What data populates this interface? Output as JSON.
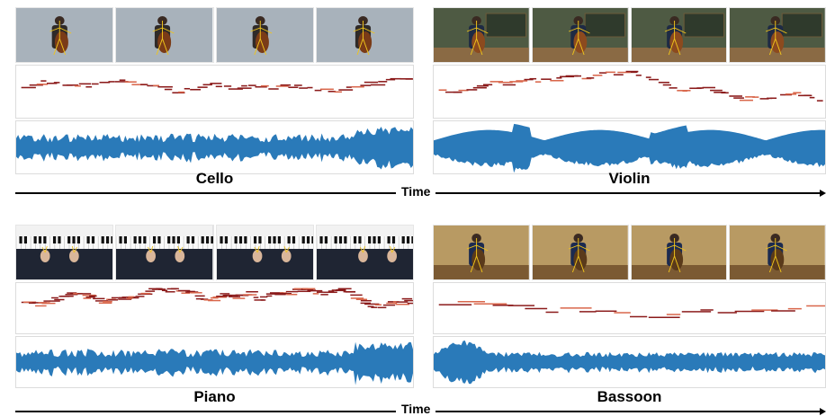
{
  "figure": {
    "top_row_time_label": "Time",
    "bottom_row_time_label": "Time"
  },
  "panels": [
    {
      "key": "cello",
      "instrument": "Cello",
      "scene": "gray-backdrop",
      "frame_count": 4
    },
    {
      "key": "violin",
      "instrument": "Violin",
      "scene": "classroom-chalkboard",
      "frame_count": 4
    },
    {
      "key": "piano",
      "instrument": "Piano",
      "scene": "keyboard-closeup",
      "frame_count": 4
    },
    {
      "key": "bassoon",
      "instrument": "Bassoon",
      "scene": "wooden-stage",
      "frame_count": 4
    }
  ],
  "colors": {
    "waveform": "#2a7ab9",
    "note_dark": "#8b1a1a",
    "note_light": "#d9664a",
    "skeleton": "#f0c41b",
    "gray_bg": "#a8b2bb",
    "classroom_bg": "#4e5a43",
    "stage_bg": "#b89a63",
    "piano_bg": "#1f2533"
  }
}
